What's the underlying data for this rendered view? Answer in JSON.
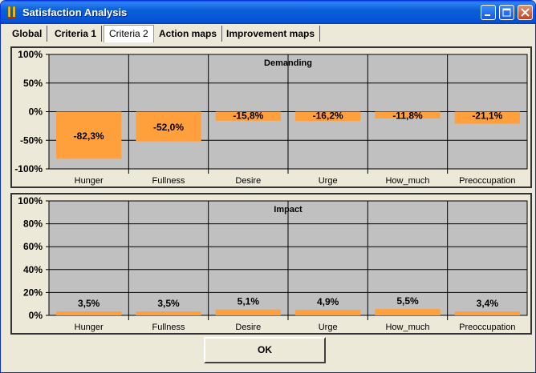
{
  "window": {
    "title": "Satisfaction Analysis",
    "controls": {
      "minimize": "minimize-icon",
      "maximize": "maximize-icon",
      "close": "close-icon"
    }
  },
  "tabs": [
    {
      "label": "Global",
      "active": false
    },
    {
      "label": "Criteria 1",
      "active": false
    },
    {
      "label": "Criteria 2",
      "active": true
    },
    {
      "label": "Action maps",
      "active": false
    },
    {
      "label": "Improvement maps",
      "active": false
    }
  ],
  "buttons": {
    "ok_label": "OK"
  },
  "colors": {
    "bar": "#ffa03c",
    "plot_bg": "#c0c0c0",
    "panel_bg": "#ece9d8"
  },
  "chart_data": [
    {
      "type": "bar",
      "title": "Demanding",
      "categories": [
        "Hunger",
        "Fullness",
        "Desire",
        "Urge",
        "How_much",
        "Preoccupation"
      ],
      "values": [
        -82.3,
        -52.0,
        -15.8,
        -16.2,
        -11.8,
        -21.1
      ],
      "value_labels": [
        "-82,3%",
        "-52,0%",
        "-15,8%",
        "-16,2%",
        "-11,8%",
        "-21,1%"
      ],
      "ylim": [
        -100,
        100
      ],
      "yticks": [
        100,
        50,
        0,
        -50,
        -100
      ],
      "ytick_labels": [
        "100%",
        "50%",
        "0%",
        "-50%",
        "-100%"
      ],
      "grid": true
    },
    {
      "type": "bar",
      "title": "Impact",
      "categories": [
        "Hunger",
        "Fullness",
        "Desire",
        "Urge",
        "How_much",
        "Preoccupation"
      ],
      "values": [
        3.5,
        3.5,
        5.1,
        4.9,
        5.5,
        3.4
      ],
      "value_labels": [
        "3,5%",
        "3,5%",
        "5,1%",
        "4,9%",
        "5,5%",
        "3,4%"
      ],
      "ylim": [
        0,
        100
      ],
      "yticks": [
        100,
        80,
        60,
        40,
        20,
        0
      ],
      "ytick_labels": [
        "100%",
        "80%",
        "60%",
        "40%",
        "20%",
        "0%"
      ],
      "grid": true
    }
  ]
}
